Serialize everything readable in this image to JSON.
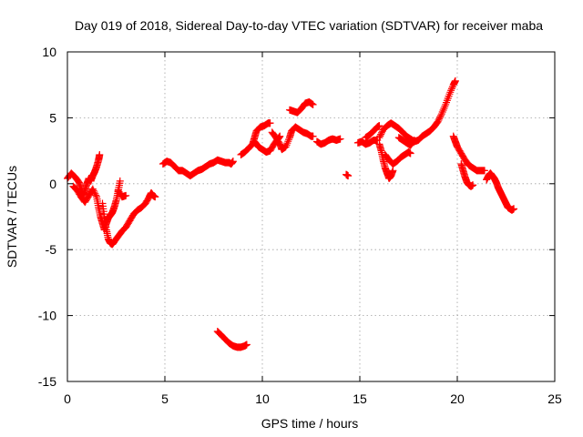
{
  "chart_data": {
    "type": "scatter",
    "title": "Day 019 of 2018, Sidereal Day-to-day VTEC variation (SDTVAR) for receiver maba",
    "xlabel": "GPS time / hours",
    "ylabel": "SDTVAR / TECUs",
    "xlim": [
      0,
      25
    ],
    "ylim": [
      -15,
      10
    ],
    "xticks": [
      "0",
      "5",
      "10",
      "15",
      "20",
      "25"
    ],
    "yticks": [
      "-15",
      "-10",
      "-5",
      "0",
      "5",
      "10"
    ],
    "grid": true,
    "marker": "+",
    "color": "#ff0000",
    "segments": [
      [
        [
          0.0,
          0.4
        ],
        [
          0.2,
          0.8
        ],
        [
          0.4,
          0.5
        ],
        [
          0.6,
          0.1
        ],
        [
          0.7,
          -0.4
        ],
        [
          0.8,
          -0.9
        ],
        [
          0.9,
          -0.5
        ],
        [
          1.0,
          0.0
        ],
        [
          1.1,
          0.4
        ],
        [
          1.2,
          0.2
        ],
        [
          1.3,
          0.6
        ],
        [
          1.4,
          0.9
        ],
        [
          1.5,
          1.3
        ],
        [
          1.6,
          1.8
        ],
        [
          1.65,
          2.2
        ]
      ],
      [
        [
          0.3,
          -0.2
        ],
        [
          0.5,
          -0.5
        ],
        [
          0.7,
          -1.0
        ],
        [
          0.9,
          -1.4
        ],
        [
          1.1,
          -0.9
        ],
        [
          1.3,
          -0.4
        ],
        [
          1.5,
          -1.0
        ],
        [
          1.6,
          -1.8
        ],
        [
          1.7,
          -2.5
        ],
        [
          1.8,
          -3.0
        ],
        [
          1.9,
          -3.5
        ],
        [
          2.0,
          -3.0
        ],
        [
          2.1,
          -2.6
        ],
        [
          2.2,
          -2.4
        ],
        [
          2.3,
          -2.2
        ],
        [
          2.4,
          -1.8
        ],
        [
          2.5,
          -1.3
        ],
        [
          2.6,
          -0.6
        ],
        [
          2.7,
          0.2
        ]
      ],
      [
        [
          1.8,
          -1.5
        ],
        [
          1.9,
          -2.5
        ],
        [
          2.0,
          -3.5
        ],
        [
          2.1,
          -4.2
        ],
        [
          2.2,
          -4.5
        ],
        [
          2.3,
          -4.6
        ],
        [
          2.4,
          -4.4
        ],
        [
          2.6,
          -4.0
        ],
        [
          2.8,
          -3.6
        ],
        [
          3.0,
          -3.3
        ],
        [
          3.2,
          -2.8
        ],
        [
          3.4,
          -2.3
        ],
        [
          3.6,
          -2.0
        ],
        [
          3.8,
          -1.8
        ],
        [
          4.0,
          -1.5
        ],
        [
          4.2,
          -1.0
        ],
        [
          4.3,
          -0.7
        ],
        [
          4.4,
          -0.9
        ],
        [
          4.5,
          -1.0
        ]
      ],
      [
        [
          2.6,
          -0.5
        ],
        [
          2.8,
          -1.0
        ],
        [
          3.0,
          -0.9
        ]
      ],
      [
        [
          4.9,
          1.5
        ],
        [
          5.1,
          1.7
        ],
        [
          5.3,
          1.6
        ],
        [
          5.5,
          1.3
        ],
        [
          5.7,
          1.0
        ],
        [
          5.9,
          1.0
        ],
        [
          6.1,
          0.8
        ],
        [
          6.3,
          0.6
        ],
        [
          6.5,
          0.8
        ],
        [
          6.7,
          1.0
        ],
        [
          6.9,
          1.1
        ],
        [
          7.1,
          1.3
        ],
        [
          7.3,
          1.5
        ],
        [
          7.5,
          1.6
        ],
        [
          7.7,
          1.8
        ],
        [
          7.9,
          1.7
        ],
        [
          8.1,
          1.6
        ],
        [
          8.3,
          1.6
        ],
        [
          8.4,
          1.5
        ],
        [
          8.5,
          1.7
        ]
      ],
      [
        [
          7.7,
          -11.2
        ],
        [
          7.9,
          -11.5
        ],
        [
          8.1,
          -11.8
        ],
        [
          8.3,
          -12.1
        ],
        [
          8.5,
          -12.3
        ],
        [
          8.7,
          -12.4
        ],
        [
          8.9,
          -12.4
        ],
        [
          9.1,
          -12.3
        ],
        [
          9.2,
          -12.2
        ]
      ],
      [
        [
          8.9,
          2.2
        ],
        [
          9.1,
          2.4
        ],
        [
          9.3,
          2.7
        ],
        [
          9.5,
          3.0
        ],
        [
          9.6,
          3.5
        ],
        [
          9.7,
          4.0
        ],
        [
          9.9,
          4.3
        ],
        [
          10.1,
          4.4
        ],
        [
          10.3,
          4.6
        ],
        [
          10.4,
          4.6
        ]
      ],
      [
        [
          9.6,
          3.2
        ],
        [
          9.8,
          2.8
        ],
        [
          10.0,
          2.6
        ],
        [
          10.2,
          2.4
        ],
        [
          10.4,
          2.5
        ],
        [
          10.6,
          3.0
        ],
        [
          10.8,
          3.4
        ],
        [
          10.9,
          3.6
        ]
      ],
      [
        [
          10.5,
          3.9
        ],
        [
          10.7,
          3.5
        ],
        [
          10.9,
          3.0
        ],
        [
          11.0,
          2.6
        ],
        [
          11.2,
          2.8
        ],
        [
          11.4,
          3.5
        ],
        [
          11.5,
          4.0
        ],
        [
          11.7,
          4.3
        ],
        [
          11.9,
          4.1
        ],
        [
          12.1,
          3.9
        ],
        [
          12.3,
          3.8
        ],
        [
          12.5,
          3.6
        ],
        [
          12.6,
          3.6
        ]
      ],
      [
        [
          11.4,
          5.6
        ],
        [
          11.6,
          5.5
        ],
        [
          11.8,
          5.4
        ],
        [
          12.0,
          5.7
        ],
        [
          12.2,
          6.1
        ],
        [
          12.4,
          6.2
        ],
        [
          12.6,
          6.0
        ]
      ],
      [
        [
          12.8,
          3.2
        ],
        [
          13.0,
          3.0
        ],
        [
          13.2,
          3.1
        ],
        [
          13.4,
          3.3
        ],
        [
          13.6,
          3.4
        ],
        [
          13.8,
          3.3
        ],
        [
          14.0,
          3.4
        ]
      ],
      [
        [
          14.3,
          0.7
        ],
        [
          14.4,
          0.6
        ]
      ],
      [
        [
          14.9,
          3.1
        ],
        [
          15.1,
          3.2
        ],
        [
          15.3,
          3.0
        ],
        [
          15.5,
          3.1
        ],
        [
          15.7,
          3.3
        ],
        [
          15.9,
          3.3
        ]
      ],
      [
        [
          15.3,
          3.5
        ],
        [
          15.5,
          3.7
        ],
        [
          15.7,
          4.0
        ],
        [
          15.9,
          4.3
        ],
        [
          16.0,
          4.4
        ]
      ],
      [
        [
          16.0,
          3.5
        ],
        [
          16.2,
          4.1
        ],
        [
          16.4,
          4.4
        ],
        [
          16.6,
          4.6
        ],
        [
          16.8,
          4.4
        ],
        [
          17.0,
          4.2
        ],
        [
          17.2,
          3.9
        ],
        [
          17.4,
          3.6
        ],
        [
          17.6,
          3.4
        ],
        [
          17.8,
          3.2
        ],
        [
          18.0,
          3.3
        ],
        [
          18.2,
          3.6
        ],
        [
          18.4,
          3.8
        ],
        [
          18.6,
          4.0
        ],
        [
          18.8,
          4.3
        ],
        [
          19.0,
          4.7
        ],
        [
          19.2,
          5.3
        ],
        [
          19.4,
          6.0
        ],
        [
          19.6,
          6.8
        ],
        [
          19.8,
          7.5
        ],
        [
          19.9,
          7.8
        ]
      ],
      [
        [
          16.0,
          3.0
        ],
        [
          16.1,
          2.5
        ],
        [
          16.2,
          1.8
        ],
        [
          16.3,
          1.2
        ],
        [
          16.4,
          0.8
        ],
        [
          16.5,
          0.4
        ],
        [
          16.6,
          0.6
        ],
        [
          16.7,
          1.0
        ]
      ],
      [
        [
          16.3,
          2.2
        ],
        [
          16.5,
          1.8
        ],
        [
          16.7,
          1.5
        ],
        [
          16.9,
          1.7
        ],
        [
          17.1,
          2.0
        ],
        [
          17.3,
          2.2
        ],
        [
          17.5,
          2.4
        ],
        [
          17.6,
          2.3
        ]
      ],
      [
        [
          17.0,
          3.5
        ],
        [
          17.2,
          3.3
        ],
        [
          17.4,
          3.1
        ],
        [
          17.6,
          2.9
        ],
        [
          17.8,
          3.3
        ]
      ],
      [
        [
          19.8,
          3.6
        ],
        [
          19.9,
          3.2
        ],
        [
          20.0,
          2.8
        ],
        [
          20.2,
          2.3
        ],
        [
          20.4,
          1.8
        ],
        [
          20.6,
          1.4
        ],
        [
          20.8,
          1.2
        ],
        [
          21.0,
          1.0
        ],
        [
          21.2,
          1.0
        ],
        [
          21.4,
          1.0
        ]
      ],
      [
        [
          20.2,
          1.5
        ],
        [
          20.3,
          1.0
        ],
        [
          20.4,
          0.5
        ],
        [
          20.5,
          0.1
        ],
        [
          20.6,
          -0.1
        ],
        [
          20.7,
          -0.2
        ],
        [
          20.8,
          -0.1
        ]
      ],
      [
        [
          21.5,
          0.3
        ],
        [
          21.6,
          0.6
        ],
        [
          21.7,
          0.8
        ],
        [
          21.8,
          0.6
        ],
        [
          21.9,
          0.4
        ],
        [
          22.0,
          0.1
        ],
        [
          22.1,
          -0.3
        ],
        [
          22.2,
          -0.6
        ],
        [
          22.3,
          -0.9
        ],
        [
          22.4,
          -1.2
        ],
        [
          22.5,
          -1.5
        ],
        [
          22.6,
          -1.8
        ],
        [
          22.7,
          -1.9
        ],
        [
          22.8,
          -2.0
        ],
        [
          22.9,
          -1.9
        ]
      ]
    ]
  }
}
